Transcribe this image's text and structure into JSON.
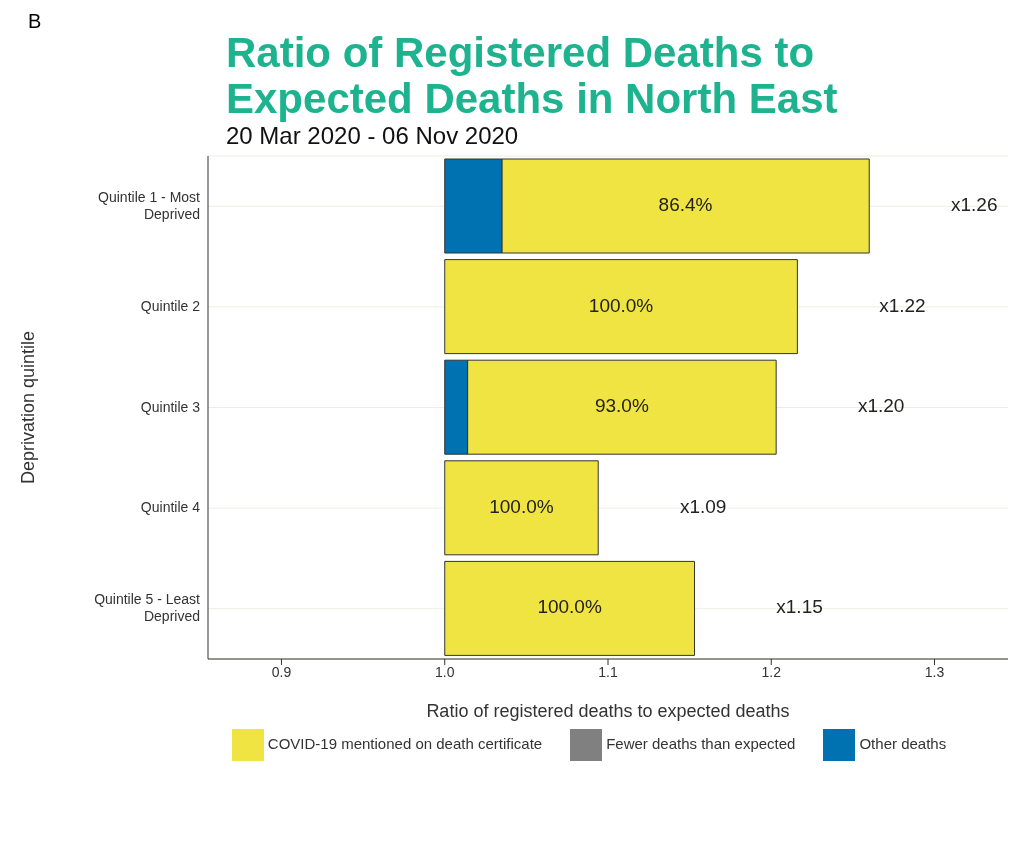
{
  "chart_data": {
    "type": "bar",
    "orientation": "horizontal",
    "title": "Ratio of Registered Deaths to Expected Deaths in North East",
    "subtitle": "20 Mar 2020 - 06 Nov 2020",
    "xlabel": "Ratio of registered deaths to expected deaths",
    "ylabel": "Deprivation quintile",
    "annotations": [
      "B",
      "86.4%",
      "100.0%",
      "93.0%",
      "100.0%",
      "100.0%",
      "x1.26",
      "x1.22",
      "x1.20",
      "x1.09",
      "x1.15"
    ],
    "categories": [
      "Quintile 1 - Most Deprived",
      "Quintile 2",
      "Quintile 3",
      "Quintile 4",
      "Quintile 5 - Least Deprived"
    ],
    "series": [
      {
        "name": "COVID-19 mentioned on death certificate",
        "color": "#f0e442",
        "values": [
          0.225,
          0.216,
          0.189,
          0.094,
          0.153
        ],
        "base": [
          1.035,
          1,
          1.014,
          1,
          1
        ]
      },
      {
        "name": "Other deaths",
        "color": "#0072b2",
        "values": [
          0.035,
          null,
          0.014,
          null,
          null
        ],
        "base": [
          1,
          null,
          1,
          null,
          null
        ]
      },
      {
        "name": "Fewer deaths than expected",
        "color": "#808080",
        "values": [
          null,
          null,
          null,
          null,
          null
        ]
      }
    ],
    "xlim": [
      0.855,
      1.345
    ],
    "xticks": [
      0.9,
      {
        "value": 1,
        "label": "1.0"
      },
      1.1,
      1.2,
      1.3
    ],
    "grid": "y",
    "legend": "bottom"
  }
}
